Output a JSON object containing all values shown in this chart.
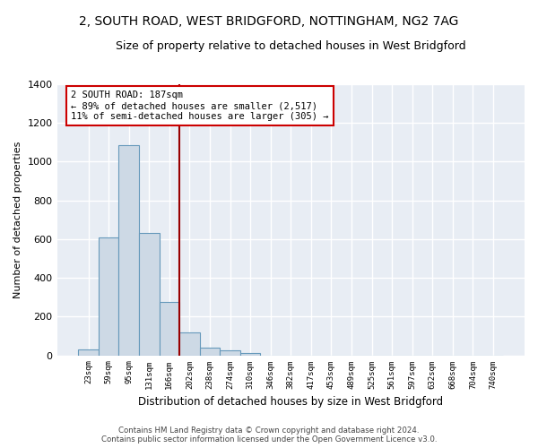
{
  "title": "2, SOUTH ROAD, WEST BRIDGFORD, NOTTINGHAM, NG2 7AG",
  "subtitle": "Size of property relative to detached houses in West Bridgford",
  "xlabel": "Distribution of detached houses by size in West Bridgford",
  "ylabel": "Number of detached properties",
  "bar_color": "#cdd9e5",
  "bar_edge_color": "#6699bb",
  "bg_color": "#e8edf4",
  "grid_color": "white",
  "categories": [
    "23sqm",
    "59sqm",
    "95sqm",
    "131sqm",
    "166sqm",
    "202sqm",
    "238sqm",
    "274sqm",
    "310sqm",
    "346sqm",
    "382sqm",
    "417sqm",
    "453sqm",
    "489sqm",
    "525sqm",
    "561sqm",
    "597sqm",
    "632sqm",
    "668sqm",
    "704sqm",
    "740sqm"
  ],
  "values": [
    30,
    610,
    1085,
    630,
    275,
    120,
    40,
    25,
    10,
    0,
    0,
    0,
    0,
    0,
    0,
    0,
    0,
    0,
    0,
    0,
    0
  ],
  "ylim": [
    0,
    1400
  ],
  "yticks": [
    0,
    200,
    400,
    600,
    800,
    1000,
    1200,
    1400
  ],
  "vline_x": 4.5,
  "vline_color": "#990000",
  "annotation_text": "2 SOUTH ROAD: 187sqm\n← 89% of detached houses are smaller (2,517)\n11% of semi-detached houses are larger (305) →",
  "annotation_box_color": "white",
  "annotation_box_edge": "#cc0000",
  "title_fontsize": 10,
  "subtitle_fontsize": 9,
  "footer_line1": "Contains HM Land Registry data © Crown copyright and database right 2024.",
  "footer_line2": "Contains public sector information licensed under the Open Government Licence v3.0."
}
